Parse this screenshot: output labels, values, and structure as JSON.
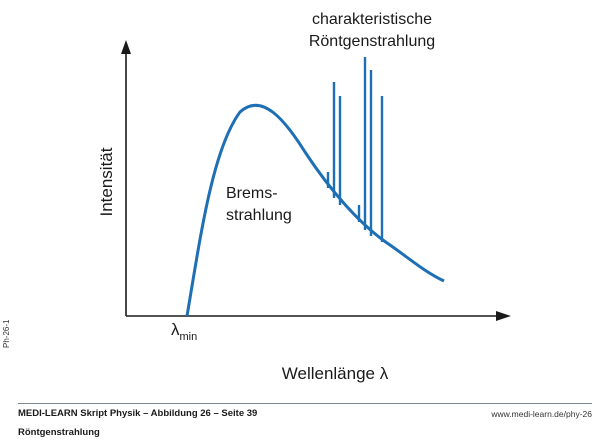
{
  "diagram": {
    "y_axis_label": "Intensität",
    "x_axis_label": "Wellenlänge λ",
    "lambda_min_symbol": "λ",
    "lambda_min_subscript": "min",
    "brems_label_line1": "Brems-",
    "brems_label_line2": "strahlung",
    "characteristic_label_line1": "charakteristische",
    "characteristic_label_line2": "Röntgenstrahlung",
    "curve_color": "#1f6fb5",
    "axis_color": "#1a1a1a"
  },
  "side_code": "Ph-26-1",
  "footer": {
    "title": "MEDI-LEARN Skript Physik – Abbildung 26 – Seite 39",
    "url": "www.medi-learn.de/phy-26",
    "subtitle": "Röntgenstrahlung"
  }
}
